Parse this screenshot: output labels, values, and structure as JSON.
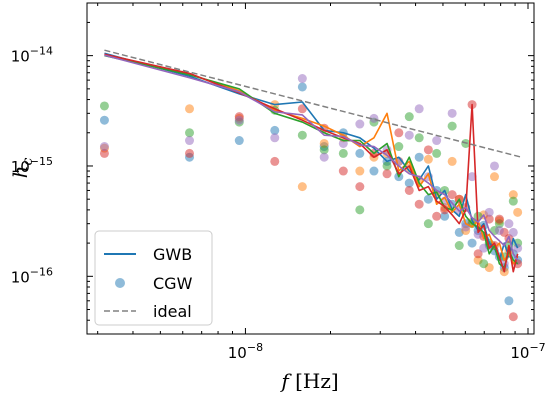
{
  "chart_data": {
    "type": "line",
    "xlabel_italic": "f",
    "xlabel_unit": " [Hz]",
    "ylabel_base": "h",
    "ylabel_sub": "c",
    "x_scale": "log",
    "y_scale": "log",
    "xlim": [
      2.75e-09,
      1.05e-07
    ],
    "ylim": [
      3e-17,
      3e-14
    ],
    "x_ticks": [
      {
        "value": 1e-08,
        "base": "10",
        "exp": "−8"
      },
      {
        "value": 1e-07,
        "base": "10",
        "exp": "−7"
      }
    ],
    "y_ticks": [
      {
        "value": 1e-16,
        "base": "10",
        "exp": "−16"
      },
      {
        "value": 1e-15,
        "base": "10",
        "exp": "−15"
      },
      {
        "value": 1e-14,
        "base": "10",
        "exp": "−14"
      }
    ],
    "grid": false,
    "legend": {
      "position": "lower-left",
      "entries": [
        {
          "label": "GWB",
          "kind": "line",
          "color": "#1f77b4"
        },
        {
          "label": "CGW",
          "kind": "dot",
          "color": "#1f77b4"
        },
        {
          "label": "ideal",
          "kind": "dashed",
          "color": "#808080"
        }
      ]
    },
    "ideal": {
      "x": [
        3.17e-09,
        9.5e-08
      ],
      "y": [
        1.12e-14,
        1.2e-15
      ],
      "color": "#808080"
    },
    "gwb_series": [
      {
        "color": "#1f77b4",
        "x": [
          3.17e-09,
          6.34e-09,
          9.51e-09,
          1.27e-08,
          1.59e-08,
          1.9e-08,
          2.22e-08,
          2.54e-08,
          2.85e-08,
          3.17e-08,
          3.49e-08,
          3.8e-08,
          4.12e-08,
          4.44e-08,
          4.75e-08,
          5.07e-08,
          5.39e-08,
          5.71e-08,
          6.02e-08,
          6.34e-08,
          6.66e-08,
          6.97e-08,
          7.29e-08,
          7.61e-08,
          7.92e-08,
          8.24e-08,
          8.56e-08,
          8.87e-08,
          9.19e-08
        ],
        "y": [
          1.05e-14,
          6.5e-15,
          4.5e-15,
          3.6e-15,
          3.8e-15,
          2.1e-15,
          2e-15,
          1.8e-15,
          1.45e-15,
          1.1e-15,
          1.2e-15,
          9e-16,
          7.5e-16,
          1e-15,
          5e-16,
          6e-16,
          4e-16,
          3.5e-16,
          5.5e-16,
          3.2e-16,
          2.6e-16,
          3e-16,
          2e-16,
          1.8e-16,
          1.4e-16,
          2e-16,
          1.5e-16,
          2.2e-16,
          1.8e-16
        ]
      },
      {
        "color": "#ff7f0e",
        "x": [
          3.17e-09,
          6.34e-09,
          9.51e-09,
          1.27e-08,
          1.59e-08,
          1.9e-08,
          2.22e-08,
          2.54e-08,
          2.85e-08,
          3.17e-08,
          3.49e-08,
          3.8e-08,
          4.12e-08,
          4.44e-08,
          4.75e-08,
          5.07e-08,
          5.39e-08,
          5.71e-08,
          6.02e-08,
          6.34e-08,
          6.66e-08,
          6.97e-08,
          7.29e-08,
          7.61e-08,
          7.92e-08,
          8.24e-08,
          8.56e-08,
          8.87e-08,
          9.19e-08
        ],
        "y": [
          1.02e-14,
          6.8e-15,
          4.8e-15,
          3.2e-15,
          2.7e-15,
          2.3e-15,
          1.9e-15,
          1.5e-15,
          1.8e-15,
          3e-15,
          9e-16,
          1.1e-15,
          6.5e-16,
          8.5e-16,
          4.5e-16,
          5.2e-16,
          3.8e-16,
          4.5e-16,
          3e-16,
          2.8e-16,
          3.2e-16,
          2.2e-16,
          2.4e-16,
          1.8e-16,
          2e-16,
          1.4e-16,
          1.6e-16,
          1.3e-16,
          1.5e-16
        ]
      },
      {
        "color": "#2ca02c",
        "x": [
          3.17e-09,
          6.34e-09,
          9.51e-09,
          1.27e-08,
          1.59e-08,
          1.9e-08,
          2.22e-08,
          2.54e-08,
          2.85e-08,
          3.17e-08,
          3.49e-08,
          3.8e-08,
          4.12e-08,
          4.44e-08,
          4.75e-08,
          5.07e-08,
          5.39e-08,
          5.71e-08,
          6.02e-08,
          6.34e-08,
          6.66e-08,
          6.97e-08,
          7.29e-08,
          7.61e-08,
          7.92e-08,
          8.24e-08,
          8.56e-08,
          8.87e-08,
          9.19e-08
        ],
        "y": [
          1e-14,
          6.7e-15,
          5e-15,
          3e-15,
          2.5e-15,
          2e-15,
          1.7e-15,
          1.7e-15,
          1.3e-15,
          1.6e-15,
          8e-16,
          1.2e-15,
          7e-16,
          5.5e-16,
          5.8e-16,
          4.2e-16,
          4e-16,
          5e-16,
          3.5e-16,
          3e-16,
          2.8e-16,
          2.5e-16,
          1.6e-16,
          1.9e-16,
          1.3e-16,
          1.2e-16,
          1.7e-16,
          1.4e-16,
          1.3e-16
        ]
      },
      {
        "color": "#d62728",
        "x": [
          3.17e-09,
          6.34e-09,
          9.51e-09,
          1.27e-08,
          1.59e-08,
          1.9e-08,
          2.22e-08,
          2.54e-08,
          2.85e-08,
          3.17e-08,
          3.49e-08,
          3.8e-08,
          4.12e-08,
          4.44e-08,
          4.75e-08,
          5.07e-08,
          5.39e-08,
          5.71e-08,
          6.02e-08,
          6.34e-08,
          6.66e-08,
          6.97e-08,
          7.29e-08,
          7.61e-08,
          7.92e-08,
          8.24e-08,
          8.56e-08,
          8.87e-08,
          9.19e-08
        ],
        "y": [
          1.03e-14,
          6.9e-15,
          4.6e-15,
          3.3e-15,
          2.6e-15,
          2.1e-15,
          1.8e-15,
          1.6e-15,
          1.2e-15,
          1.4e-15,
          8.5e-16,
          1e-15,
          6e-16,
          6.5e-16,
          4.8e-16,
          4.3e-16,
          3.6e-16,
          3e-16,
          4e-16,
          3.6e-15,
          2.5e-16,
          2.9e-16,
          1.8e-16,
          2e-16,
          1.5e-16,
          1.1e-16,
          1.9e-16,
          1.1e-16,
          1.6e-16
        ]
      },
      {
        "color": "#9467bd",
        "x": [
          3.17e-09,
          6.34e-09,
          9.51e-09,
          1.27e-08,
          1.59e-08,
          1.9e-08,
          2.22e-08,
          2.54e-08,
          2.85e-08,
          3.17e-08,
          3.49e-08,
          3.8e-08,
          4.12e-08,
          4.44e-08,
          4.75e-08,
          5.07e-08,
          5.39e-08,
          5.71e-08,
          6.02e-08,
          6.34e-08,
          6.66e-08,
          6.97e-08,
          7.29e-08,
          7.61e-08,
          7.92e-08,
          8.24e-08,
          8.56e-08,
          8.87e-08,
          9.19e-08
        ],
        "y": [
          1.01e-14,
          6.3e-15,
          4.7e-15,
          3.1e-15,
          2.9e-15,
          1.9e-15,
          1.85e-15,
          1.55e-15,
          1.5e-15,
          1.25e-15,
          1e-15,
          8.5e-16,
          8e-16,
          7e-16,
          6e-16,
          5.5e-16,
          4.6e-16,
          3.9e-16,
          4.2e-16,
          3.4e-16,
          3.1e-16,
          3.6e-16,
          2.6e-16,
          2.3e-16,
          2.1e-16,
          1.9e-16,
          2.3e-16,
          1.6e-16,
          1.4e-16
        ]
      }
    ],
    "cgw_series": [
      {
        "color": "#1f77b4",
        "x": [
          3.17e-09,
          6.34e-09,
          9.51e-09,
          1.27e-08,
          1.59e-08,
          1.9e-08,
          2.22e-08,
          2.54e-08,
          2.85e-08,
          3.17e-08,
          3.49e-08,
          3.8e-08,
          4.12e-08,
          4.44e-08,
          4.75e-08,
          5.07e-08,
          5.39e-08,
          5.71e-08,
          6.02e-08,
          6.34e-08,
          6.66e-08,
          6.97e-08,
          7.29e-08,
          7.61e-08,
          7.92e-08,
          8.24e-08,
          8.56e-08,
          8.87e-08,
          9.19e-08
        ],
        "y": [
          2.6e-15,
          1.2e-15,
          1.7e-15,
          2.1e-15,
          5.2e-15,
          1.5e-15,
          2e-15,
          1.3e-15,
          9e-16,
          1.1e-15,
          8e-16,
          7e-16,
          1.2e-15,
          5e-16,
          6e-16,
          3.5e-16,
          4.5e-16,
          2.5e-16,
          3e-16,
          2e-16,
          2.6e-16,
          2.9e-16,
          1.9e-16,
          1.7e-16,
          1.5e-16,
          1.2e-16,
          6e-17,
          1.6e-16,
          1.4e-16
        ]
      },
      {
        "color": "#ff7f0e",
        "x": [
          3.17e-09,
          6.34e-09,
          9.51e-09,
          1.27e-08,
          1.59e-08,
          1.9e-08,
          2.22e-08,
          2.54e-08,
          2.85e-08,
          3.17e-08,
          3.49e-08,
          3.8e-08,
          4.12e-08,
          4.44e-08,
          4.75e-08,
          5.07e-08,
          5.39e-08,
          5.71e-08,
          6.02e-08,
          6.34e-08,
          6.66e-08,
          6.97e-08,
          7.29e-08,
          7.61e-08,
          7.92e-08,
          8.24e-08,
          8.56e-08,
          8.87e-08,
          9.19e-08
        ],
        "y": [
          1.45e-15,
          3.3e-15,
          2.7e-15,
          3.6e-15,
          6.5e-16,
          1.6e-15,
          1.8e-15,
          9e-16,
          1.2e-15,
          1.3e-15,
          1.1e-15,
          9.5e-16,
          7.5e-16,
          1.15e-15,
          5.5e-16,
          4.2e-16,
          1.1e-15,
          5e-16,
          2.6e-16,
          3.1e-16,
          1.4e-16,
          3.6e-16,
          1.2e-16,
          8e-16,
          3.2e-16,
          1.1e-16,
          1.7e-16,
          5.5e-16,
          3.8e-16
        ]
      },
      {
        "color": "#2ca02c",
        "x": [
          3.17e-09,
          6.34e-09,
          9.51e-09,
          1.27e-08,
          1.59e-08,
          1.9e-08,
          2.22e-08,
          2.54e-08,
          2.85e-08,
          3.17e-08,
          3.49e-08,
          3.8e-08,
          4.12e-08,
          4.44e-08,
          4.75e-08,
          5.07e-08,
          5.39e-08,
          5.71e-08,
          6.02e-08,
          6.34e-08,
          6.66e-08,
          6.97e-08,
          7.29e-08,
          7.61e-08,
          7.92e-08,
          8.24e-08,
          8.56e-08,
          8.87e-08,
          9.19e-08
        ],
        "y": [
          3.5e-15,
          2e-15,
          2.5e-15,
          3.2e-15,
          1.9e-15,
          1.4e-15,
          1.3e-15,
          4e-16,
          2.5e-15,
          1e-15,
          1.5e-15,
          2.8e-15,
          1.8e-15,
          3e-16,
          1.3e-15,
          6e-16,
          2.3e-15,
          1.9e-16,
          1.6e-15,
          3e-16,
          3.5e-16,
          1.3e-16,
          2e-16,
          2.6e-16,
          3e-16,
          1.5e-16,
          1.9e-16,
          4.8e-16,
          2e-16
        ]
      },
      {
        "color": "#d62728",
        "x": [
          3.17e-09,
          6.34e-09,
          9.51e-09,
          1.27e-08,
          1.59e-08,
          1.9e-08,
          2.22e-08,
          2.54e-08,
          2.85e-08,
          3.17e-08,
          3.49e-08,
          3.8e-08,
          4.12e-08,
          4.44e-08,
          4.75e-08,
          5.07e-08,
          5.39e-08,
          5.71e-08,
          6.02e-08,
          6.34e-08,
          6.66e-08,
          6.97e-08,
          7.29e-08,
          7.61e-08,
          7.92e-08,
          8.24e-08,
          8.56e-08,
          8.87e-08,
          9.19e-08
        ],
        "y": [
          1.3e-15,
          1.3e-15,
          2.8e-15,
          1.1e-15,
          3.3e-15,
          2.2e-15,
          9e-16,
          6.5e-16,
          1.3e-15,
          8.5e-16,
          2e-15,
          6e-16,
          4.5e-16,
          1.4e-15,
          3.5e-16,
          4e-16,
          5.5e-16,
          5e-16,
          4.2e-16,
          3.6e-15,
          1.6e-16,
          2.3e-16,
          3.3e-16,
          1.9e-16,
          3.3e-16,
          2.5e-16,
          2.2e-16,
          4.3e-17,
          1.3e-16
        ]
      },
      {
        "color": "#9467bd",
        "x": [
          3.17e-09,
          6.34e-09,
          9.51e-09,
          1.27e-08,
          1.59e-08,
          1.9e-08,
          2.22e-08,
          2.54e-08,
          2.85e-08,
          3.17e-08,
          3.49e-08,
          3.8e-08,
          4.12e-08,
          4.44e-08,
          4.75e-08,
          5.07e-08,
          5.39e-08,
          5.71e-08,
          6.02e-08,
          6.34e-08,
          6.66e-08,
          6.97e-08,
          7.29e-08,
          7.61e-08,
          7.92e-08,
          8.24e-08,
          8.56e-08,
          8.87e-08,
          9.19e-08
        ],
        "y": [
          1.5e-15,
          1.7e-15,
          2.6e-15,
          1.8e-15,
          6.2e-15,
          1.2e-15,
          1.6e-15,
          2.4e-15,
          2.7e-15,
          1.4e-15,
          1.1e-15,
          1.9e-15,
          3.3e-15,
          8e-16,
          1.7e-15,
          4.8e-16,
          3e-15,
          4e-16,
          2.8e-16,
          8e-16,
          2.4e-16,
          1.8e-16,
          3.8e-16,
          1e-15,
          2.6e-16,
          1.3e-16,
          3e-16,
          2.5e-16,
          1.8e-16
        ]
      }
    ]
  }
}
